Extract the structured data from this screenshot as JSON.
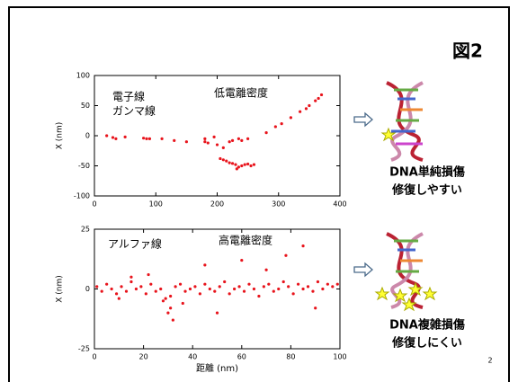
{
  "slide_title": "図2",
  "page_number": 2,
  "chart_data": [
    {
      "type": "scatter",
      "y_label": "X (nm)",
      "annotations": [
        "電子線",
        "ガンマ線",
        "低電離密度"
      ],
      "color": "#e8141c",
      "xlim": [
        0,
        400
      ],
      "xticks": [
        0,
        100,
        200,
        300,
        400
      ],
      "ylim": [
        -100,
        100
      ],
      "yticks": [
        -100,
        -50,
        0,
        50,
        100
      ],
      "x": [
        20,
        30,
        35,
        50,
        80,
        85,
        90,
        110,
        130,
        150,
        180,
        180,
        185,
        195,
        200,
        210,
        220,
        235,
        240,
        250,
        205,
        210,
        215,
        220,
        225,
        230,
        232,
        235,
        240,
        245,
        250,
        255,
        260,
        225,
        280,
        295,
        305,
        320,
        335,
        345,
        350,
        360,
        365,
        370
      ],
      "values": [
        0,
        -3,
        -5,
        -2,
        -4,
        -5,
        -5,
        -5,
        -8,
        -10,
        -5,
        -10,
        -12,
        -2,
        -15,
        -20,
        -10,
        -5,
        -8,
        -5,
        -38,
        -40,
        -42,
        -45,
        -46,
        -48,
        -55,
        -52,
        -50,
        -48,
        -47,
        -50,
        -48,
        -8,
        5,
        15,
        20,
        30,
        40,
        45,
        50,
        58,
        62,
        68
      ]
    },
    {
      "type": "scatter",
      "x_label": "距離 (nm)",
      "y_label": "X (nm)",
      "annotations": [
        "アルファ線",
        "高電離密度"
      ],
      "color": "#e8141c",
      "xlim": [
        0,
        100
      ],
      "xticks": [
        0,
        20,
        40,
        60,
        80,
        100
      ],
      "ylim": [
        -25,
        25
      ],
      "yticks": [
        -25,
        0,
        25
      ],
      "x": [
        1,
        3,
        5,
        7,
        9,
        11,
        13,
        15,
        17,
        19,
        21,
        23,
        25,
        27,
        29,
        31,
        33,
        35,
        37,
        39,
        41,
        43,
        45,
        47,
        49,
        51,
        53,
        55,
        57,
        59,
        61,
        63,
        65,
        67,
        69,
        71,
        73,
        75,
        77,
        79,
        81,
        83,
        85,
        87,
        89,
        91,
        93,
        95,
        97,
        99,
        30,
        32,
        31,
        28,
        15,
        45,
        85,
        50,
        70,
        60,
        90,
        22,
        36,
        78,
        10
      ],
      "values": [
        1,
        -1,
        2,
        0,
        -2,
        1,
        -1,
        3,
        0,
        1,
        -2,
        2,
        -1,
        0,
        -4,
        -3,
        1,
        2,
        -1,
        0,
        1,
        -2,
        2,
        0,
        -1,
        1,
        3,
        -2,
        0,
        1,
        -1,
        2,
        0,
        -3,
        1,
        2,
        -1,
        0,
        3,
        1,
        -2,
        2,
        0,
        1,
        -1,
        3,
        0,
        2,
        1,
        2,
        -10,
        -13,
        -8,
        -5,
        5,
        10,
        18,
        -10,
        8,
        12,
        -8,
        6,
        -6,
        14,
        -4
      ]
    }
  ],
  "panels": [
    {
      "captions": [
        "DNA単純損傷",
        "修復しやすい"
      ]
    },
    {
      "captions": [
        "DNA複雑損傷",
        "修復しにくい"
      ]
    }
  ]
}
